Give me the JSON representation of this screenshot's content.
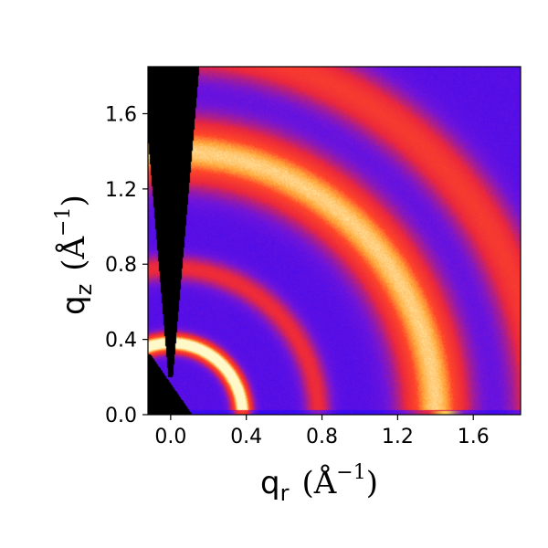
{
  "chart_data": {
    "type": "heatmap",
    "title": "",
    "xlabel": {
      "main": "q",
      "sub": "r",
      "unit": "(Å",
      "sup": "−1",
      "close": ")"
    },
    "ylabel": {
      "main": "q",
      "sub": "z",
      "unit": "(Å",
      "sup": "−1",
      "close": ")"
    },
    "xlim": [
      -0.12,
      1.85
    ],
    "ylim": [
      0.0,
      1.85
    ],
    "x_ticks": [
      0.0,
      0.4,
      0.8,
      1.2,
      1.6
    ],
    "x_tick_labels": [
      "0.0",
      "0.4",
      "0.8",
      "1.2",
      "1.6"
    ],
    "y_ticks": [
      0.0,
      0.4,
      0.8,
      1.2,
      1.6
    ],
    "y_tick_labels": [
      "0.0",
      "0.4",
      "0.8",
      "1.2",
      "1.6"
    ],
    "grid": false,
    "legend": "none",
    "colormap": {
      "name": "gnuplot2-like",
      "low": "#1a00ff",
      "mid": "#ff2a2a",
      "high": "#fff8c8"
    },
    "rings": [
      {
        "q": 0.38,
        "width": 0.035,
        "intensity": 1.0
      },
      {
        "q": 0.78,
        "width": 0.05,
        "intensity": 0.35
      },
      {
        "q": 1.4,
        "width": 0.12,
        "intensity": 0.75
      },
      {
        "q": 1.95,
        "width": 0.1,
        "intensity": 0.45
      }
    ],
    "regions": {
      "beamstop": "black vertical wedge near qr = 0",
      "detector_gap": "black lower-left corner near origin"
    }
  }
}
